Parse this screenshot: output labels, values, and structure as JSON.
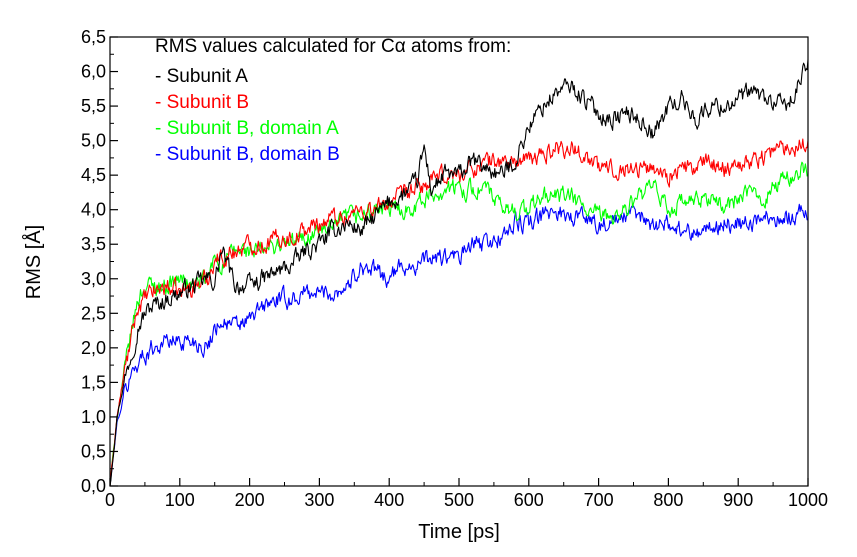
{
  "chart_data": {
    "type": "line",
    "title": "RMS values calculated for Cα atoms from:",
    "xlabel": "Time [ps]",
    "ylabel": "RMS [Å]",
    "xlim": [
      0,
      1000
    ],
    "ylim": [
      0,
      6.5
    ],
    "x_ticks": [
      0,
      100,
      200,
      300,
      400,
      500,
      600,
      700,
      800,
      900,
      1000
    ],
    "x_tick_labels": [
      "0",
      "100",
      "200",
      "300",
      "400",
      "500",
      "600",
      "700",
      "800",
      "900",
      "1000"
    ],
    "y_ticks": [
      0,
      0.5,
      1.0,
      1.5,
      2.0,
      2.5,
      3.0,
      3.5,
      4.0,
      4.5,
      5.0,
      5.5,
      6.0,
      6.5
    ],
    "y_tick_labels": [
      "0,0",
      "0,5",
      "1,0",
      "1,5",
      "2,0",
      "2,5",
      "3,0",
      "3,5",
      "4,0",
      "4,5",
      "5,0",
      "5,5",
      "6,0",
      "6,5"
    ],
    "grid": false,
    "legend_position": "top-left",
    "series": [
      {
        "name": "Subunit A",
        "legend_label": "- Subunit A",
        "color": "#000000",
        "x": [
          0,
          10,
          20,
          30,
          40,
          50,
          60,
          80,
          100,
          120,
          140,
          150,
          160,
          180,
          200,
          220,
          240,
          260,
          280,
          300,
          320,
          340,
          360,
          380,
          400,
          420,
          440,
          450,
          460,
          480,
          500,
          520,
          540,
          560,
          580,
          600,
          620,
          640,
          660,
          680,
          700,
          720,
          740,
          760,
          780,
          800,
          820,
          840,
          860,
          880,
          900,
          920,
          940,
          960,
          980,
          990,
          1000
        ],
        "y": [
          0.0,
          1.0,
          1.5,
          1.9,
          2.3,
          2.5,
          2.6,
          2.7,
          2.8,
          2.9,
          3.0,
          2.95,
          3.4,
          2.9,
          2.9,
          3.0,
          3.1,
          3.2,
          3.4,
          3.5,
          3.7,
          3.8,
          3.7,
          3.9,
          4.1,
          4.2,
          4.4,
          4.9,
          4.3,
          4.5,
          4.5,
          4.7,
          4.6,
          4.5,
          4.7,
          5.2,
          5.5,
          5.7,
          5.8,
          5.6,
          5.4,
          5.3,
          5.4,
          5.3,
          5.1,
          5.5,
          5.6,
          5.3,
          5.5,
          5.5,
          5.6,
          5.7,
          5.6,
          5.5,
          5.6,
          5.9,
          6.1
        ]
      },
      {
        "name": "Subunit B",
        "legend_label": "- Subunit B",
        "color": "#ff0000",
        "x": [
          0,
          10,
          20,
          30,
          40,
          50,
          60,
          80,
          100,
          120,
          140,
          150,
          160,
          180,
          200,
          220,
          240,
          260,
          280,
          300,
          320,
          340,
          360,
          380,
          400,
          420,
          440,
          460,
          480,
          500,
          520,
          540,
          560,
          580,
          600,
          620,
          640,
          660,
          680,
          700,
          720,
          740,
          760,
          780,
          800,
          820,
          840,
          860,
          880,
          900,
          920,
          940,
          960,
          980,
          990,
          1000
        ],
        "y": [
          0.0,
          1.0,
          1.6,
          2.1,
          2.6,
          2.7,
          2.8,
          2.9,
          2.8,
          2.9,
          3.0,
          3.3,
          3.3,
          3.4,
          3.5,
          3.5,
          3.6,
          3.6,
          3.7,
          3.8,
          3.9,
          3.9,
          4.0,
          4.0,
          4.1,
          4.2,
          4.3,
          4.4,
          4.5,
          4.5,
          4.6,
          4.7,
          4.7,
          4.7,
          4.7,
          4.8,
          4.9,
          4.9,
          4.8,
          4.6,
          4.6,
          4.6,
          4.6,
          4.6,
          4.5,
          4.6,
          4.6,
          4.7,
          4.6,
          4.7,
          4.7,
          4.8,
          4.9,
          4.9,
          5.0,
          5.0
        ]
      },
      {
        "name": "Subunit B, domain A",
        "legend_label": "- Subunit B, domain A",
        "color": "#00ff00",
        "x": [
          0,
          10,
          20,
          30,
          40,
          50,
          60,
          80,
          100,
          120,
          140,
          150,
          160,
          180,
          200,
          220,
          240,
          260,
          280,
          300,
          320,
          340,
          360,
          380,
          400,
          420,
          440,
          460,
          480,
          500,
          520,
          540,
          560,
          580,
          600,
          620,
          640,
          660,
          680,
          700,
          720,
          740,
          760,
          780,
          800,
          820,
          840,
          860,
          880,
          900,
          920,
          940,
          960,
          980,
          990,
          1000
        ],
        "y": [
          0.0,
          1.0,
          1.6,
          2.2,
          2.7,
          2.9,
          2.9,
          2.9,
          3.0,
          2.9,
          3.0,
          3.3,
          3.2,
          3.4,
          3.4,
          3.4,
          3.5,
          3.5,
          3.6,
          3.7,
          3.7,
          3.9,
          3.9,
          4.0,
          4.0,
          4.0,
          4.1,
          4.2,
          4.3,
          4.3,
          4.3,
          4.3,
          4.0,
          4.0,
          4.0,
          4.2,
          4.2,
          4.2,
          4.0,
          3.9,
          3.9,
          4.0,
          4.2,
          4.3,
          4.0,
          4.1,
          4.1,
          4.2,
          4.0,
          4.2,
          4.2,
          4.2,
          4.4,
          4.5,
          4.6,
          4.5
        ]
      },
      {
        "name": "Subunit B, domain B",
        "legend_label": "- Subunit B, domain B",
        "color": "#0000ff",
        "x": [
          0,
          10,
          20,
          30,
          40,
          50,
          60,
          80,
          100,
          120,
          140,
          150,
          160,
          180,
          200,
          220,
          240,
          260,
          280,
          300,
          320,
          340,
          360,
          380,
          400,
          420,
          440,
          460,
          480,
          500,
          520,
          540,
          560,
          580,
          600,
          620,
          640,
          660,
          680,
          700,
          720,
          740,
          760,
          780,
          800,
          820,
          840,
          860,
          880,
          900,
          920,
          940,
          960,
          980,
          990,
          1000
        ],
        "y": [
          0.0,
          0.9,
          1.3,
          1.6,
          1.8,
          1.9,
          2.0,
          2.1,
          2.1,
          2.1,
          2.0,
          2.3,
          2.4,
          2.3,
          2.4,
          2.6,
          2.7,
          2.7,
          2.8,
          2.8,
          2.8,
          2.9,
          3.2,
          3.1,
          3.0,
          3.2,
          3.2,
          3.3,
          3.3,
          3.3,
          3.5,
          3.5,
          3.6,
          3.8,
          3.8,
          3.9,
          4.0,
          3.9,
          3.9,
          3.8,
          3.8,
          3.9,
          3.9,
          3.8,
          3.8,
          3.7,
          3.7,
          3.7,
          3.8,
          3.8,
          3.8,
          3.9,
          3.9,
          3.9,
          4.0,
          3.9
        ]
      }
    ]
  }
}
